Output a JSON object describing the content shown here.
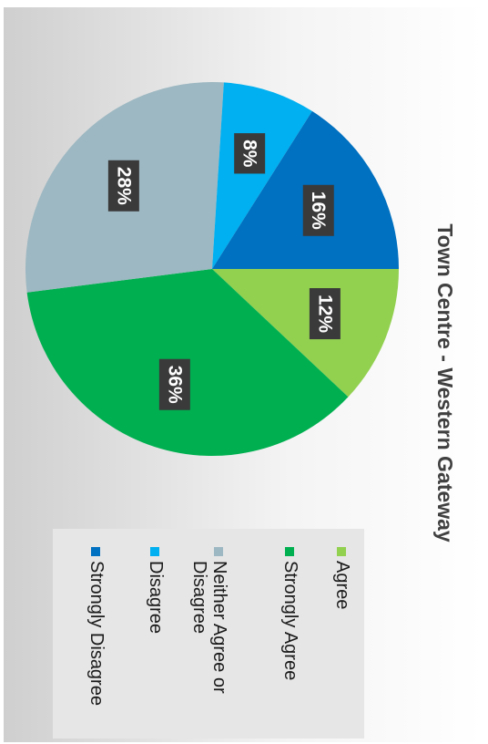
{
  "chart_data": {
    "type": "pie",
    "title": "Town Centre - Western Gateway",
    "categories": [
      "Agree",
      "Strongly Agree",
      "Neither Agree or Disagree",
      "Disagree",
      "Strongly Disagree"
    ],
    "values": [
      12,
      36,
      28,
      8,
      16
    ],
    "value_labels": [
      "12%",
      "36%",
      "28%",
      "8%",
      "16%"
    ],
    "colors": [
      "#92d050",
      "#00b050",
      "#9db8c2",
      "#00b0f0",
      "#0070c0"
    ],
    "legend": "right"
  }
}
